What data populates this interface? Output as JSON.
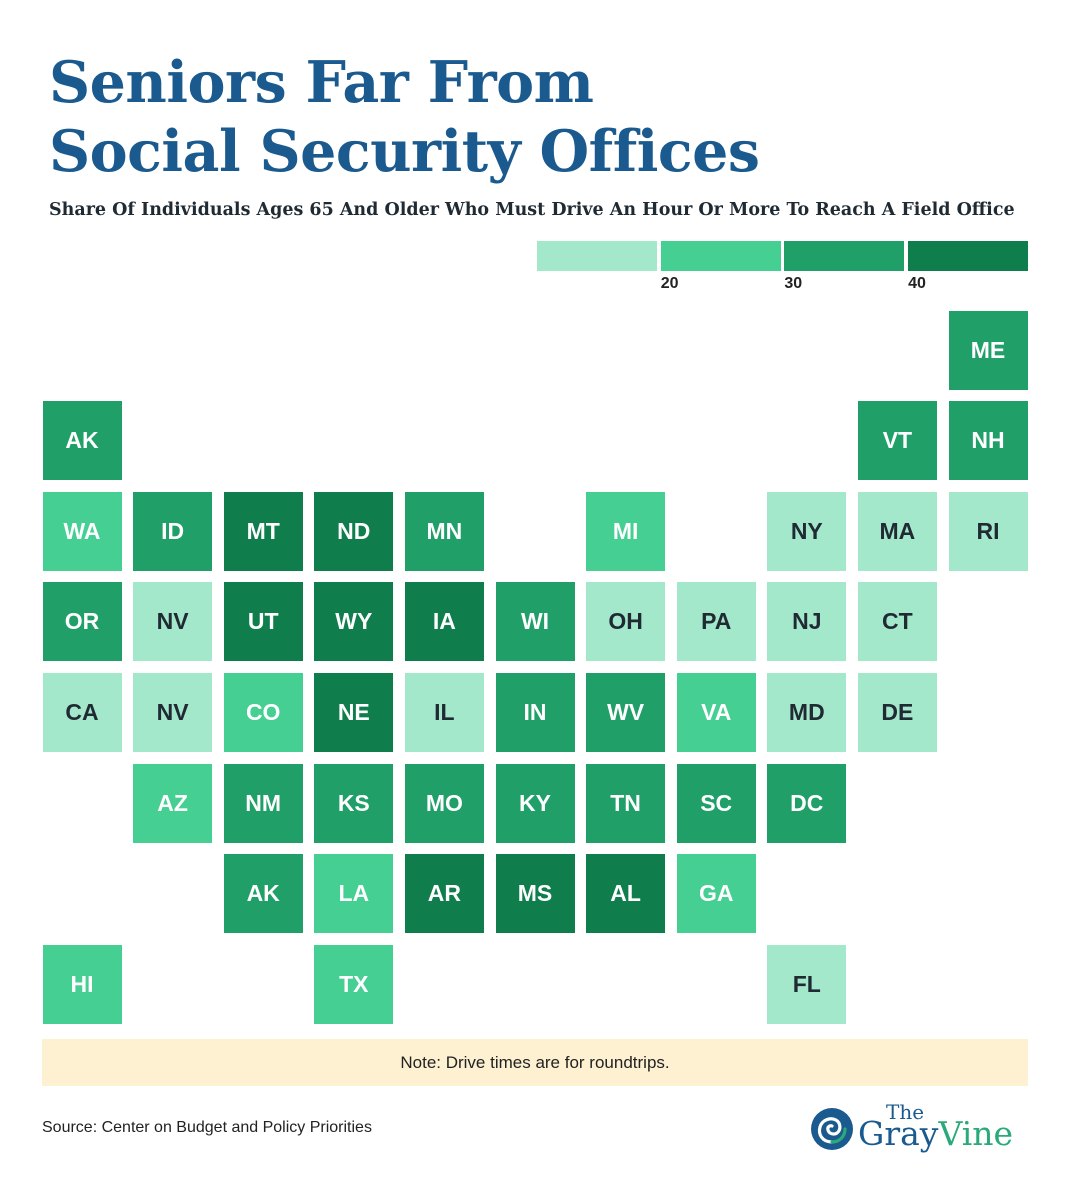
{
  "header": {
    "title_line1": "Seniors Far From",
    "title_line2": "Social Security Offices",
    "subtitle": "Share Of Individuals Ages 65 And Older Who Must Drive An Hour Or More To Reach A Field Office"
  },
  "legend": {
    "bins": [
      {
        "color": "#a4e8cc",
        "label": ""
      },
      {
        "color": "#45cf93",
        "label": "20"
      },
      {
        "color": "#20a068",
        "label": "30"
      },
      {
        "color": "#0f7e4c",
        "label": "40"
      }
    ]
  },
  "colors": {
    "bin0": "#a4e8cc",
    "bin1": "#45cf93",
    "bin2": "#20a068",
    "bin3": "#0f7e4c",
    "dark_text": "#1f2a33",
    "light_text": "#ffffff"
  },
  "map": {
    "tiles": [
      {
        "abbr": "ME",
        "bin": 2
      },
      {
        "abbr": "AK",
        "bin": 2
      },
      {
        "abbr": "VT",
        "bin": 2
      },
      {
        "abbr": "NH",
        "bin": 2
      },
      {
        "abbr": "WA",
        "bin": 1
      },
      {
        "abbr": "ID",
        "bin": 2
      },
      {
        "abbr": "MT",
        "bin": 3
      },
      {
        "abbr": "ND",
        "bin": 3
      },
      {
        "abbr": "MN",
        "bin": 2
      },
      {
        "abbr": "MI",
        "bin": 1
      },
      {
        "abbr": "NY",
        "bin": 0
      },
      {
        "abbr": "MA",
        "bin": 0
      },
      {
        "abbr": "RI",
        "bin": 0
      },
      {
        "abbr": "OR",
        "bin": 2
      },
      {
        "abbr": "NV",
        "bin": 0
      },
      {
        "abbr": "UT",
        "bin": 3
      },
      {
        "abbr": "WY",
        "bin": 3
      },
      {
        "abbr": "IA",
        "bin": 3
      },
      {
        "abbr": "WI",
        "bin": 2
      },
      {
        "abbr": "OH",
        "bin": 0
      },
      {
        "abbr": "PA",
        "bin": 0
      },
      {
        "abbr": "NJ",
        "bin": 0
      },
      {
        "abbr": "CT",
        "bin": 0
      },
      {
        "abbr": "CA",
        "bin": 0
      },
      {
        "abbr": "NV",
        "bin": 0
      },
      {
        "abbr": "CO",
        "bin": 1
      },
      {
        "abbr": "NE",
        "bin": 3
      },
      {
        "abbr": "IL",
        "bin": 0
      },
      {
        "abbr": "IN",
        "bin": 2
      },
      {
        "abbr": "WV",
        "bin": 2
      },
      {
        "abbr": "VA",
        "bin": 1
      },
      {
        "abbr": "MD",
        "bin": 0
      },
      {
        "abbr": "DE",
        "bin": 0
      },
      {
        "abbr": "AZ",
        "bin": 1
      },
      {
        "abbr": "NM",
        "bin": 2
      },
      {
        "abbr": "KS",
        "bin": 2
      },
      {
        "abbr": "MO",
        "bin": 2
      },
      {
        "abbr": "KY",
        "bin": 2
      },
      {
        "abbr": "TN",
        "bin": 2
      },
      {
        "abbr": "SC",
        "bin": 2
      },
      {
        "abbr": "DC",
        "bin": 2
      },
      {
        "abbr": "AK",
        "bin": 2
      },
      {
        "abbr": "LA",
        "bin": 1
      },
      {
        "abbr": "AR",
        "bin": 3
      },
      {
        "abbr": "MS",
        "bin": 3
      },
      {
        "abbr": "AL",
        "bin": 3
      },
      {
        "abbr": "GA",
        "bin": 1
      },
      {
        "abbr": "HI",
        "bin": 1
      },
      {
        "abbr": "TX",
        "bin": 1
      },
      {
        "abbr": "FL",
        "bin": 0
      }
    ]
  },
  "footer": {
    "note": "Note: Drive times are for roundtrips.",
    "source": "Source: Center on Budget and Policy Priorities",
    "logo_the": "The",
    "logo_gray": "Gray",
    "logo_vine": "Vine"
  }
}
